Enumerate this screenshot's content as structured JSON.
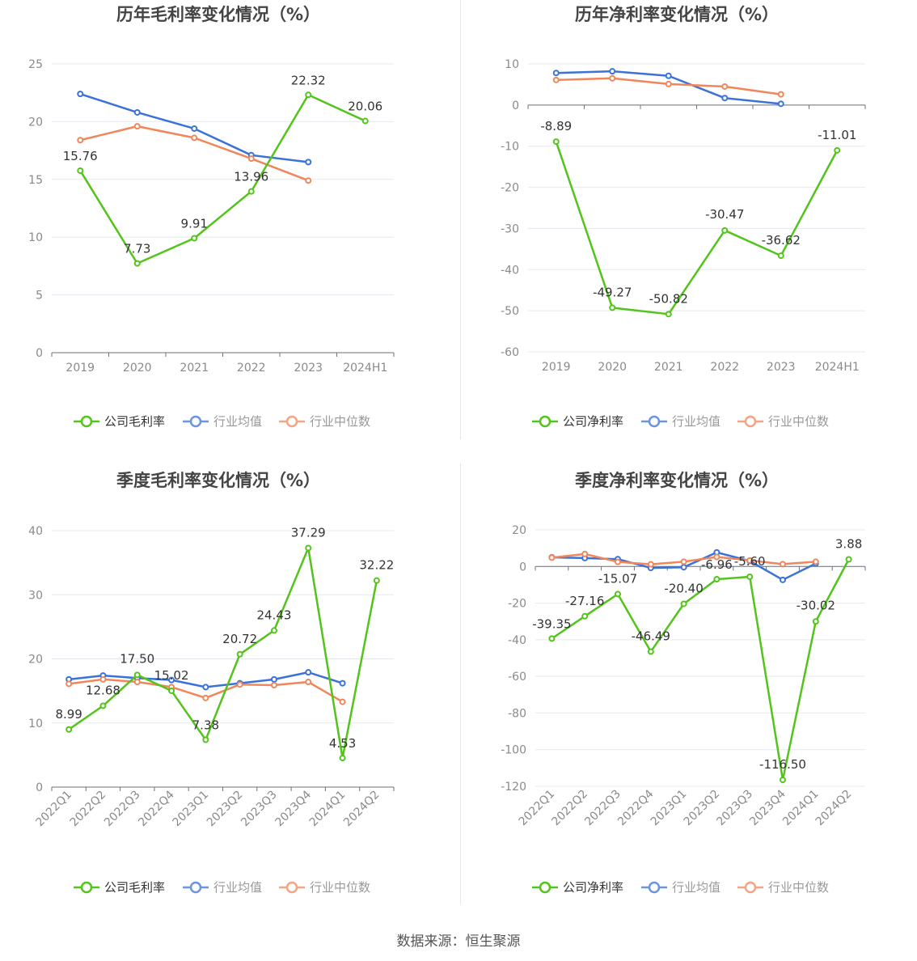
{
  "colors": {
    "company": "#52c41a",
    "industry_avg": "#3a72d8",
    "industry_median": "#f0865a",
    "grid": "#e6e8f0",
    "axis": "#6e7079",
    "label": "#333333",
    "tick": "#8a8a8a"
  },
  "source_text": "数据来源：恒生聚源",
  "chart_data": [
    {
      "type": "line",
      "title": "历年毛利率变化情况（%）",
      "categories": [
        "2019",
        "2020",
        "2021",
        "2022",
        "2023",
        "2024H1"
      ],
      "ylim": [
        0,
        25
      ],
      "yticks": [
        0,
        5,
        10,
        15,
        20,
        25
      ],
      "legend_position": "bottom",
      "grid": true,
      "series": [
        {
          "name": "公司毛利率",
          "key": "company",
          "values": [
            15.76,
            7.73,
            9.91,
            13.96,
            22.32,
            20.06
          ],
          "labels": [
            "15.76",
            "7.73",
            "9.91",
            "13.96",
            "22.32",
            "20.06"
          ]
        },
        {
          "name": "行业均值",
          "key": "industry_avg",
          "values": [
            22.4,
            20.8,
            19.4,
            17.1,
            16.5,
            null
          ]
        },
        {
          "name": "行业中位数",
          "key": "industry_median",
          "values": [
            18.4,
            19.6,
            18.6,
            16.8,
            14.9,
            null
          ]
        }
      ]
    },
    {
      "type": "line",
      "title": "历年净利率变化情况（%）",
      "categories": [
        "2019",
        "2020",
        "2021",
        "2022",
        "2023",
        "2024H1"
      ],
      "ylim": [
        -60,
        10
      ],
      "yticks": [
        -60,
        -50,
        -40,
        -30,
        -20,
        -10,
        0,
        10
      ],
      "legend_position": "bottom",
      "grid": true,
      "series": [
        {
          "name": "公司净利率",
          "key": "company",
          "values": [
            -8.89,
            -49.27,
            -50.82,
            -30.47,
            -36.62,
            -11.01
          ],
          "labels": [
            "-8.89",
            "-49.27",
            "-50.82",
            "-30.47",
            "-36.62",
            "-11.01"
          ]
        },
        {
          "name": "行业均值",
          "key": "industry_avg",
          "values": [
            7.8,
            8.2,
            7.1,
            1.7,
            0.3,
            null
          ]
        },
        {
          "name": "行业中位数",
          "key": "industry_median",
          "values": [
            6.1,
            6.5,
            5.1,
            4.5,
            2.6,
            null
          ]
        }
      ]
    },
    {
      "type": "line",
      "title": "季度毛利率变化情况（%）",
      "categories": [
        "2022Q1",
        "2022Q2",
        "2022Q3",
        "2022Q4",
        "2023Q1",
        "2023Q2",
        "2023Q3",
        "2023Q4",
        "2024Q1",
        "2024Q2"
      ],
      "ylim": [
        0,
        40
      ],
      "yticks": [
        0,
        10,
        20,
        30,
        40
      ],
      "legend_position": "bottom",
      "grid": true,
      "series": [
        {
          "name": "公司毛利率",
          "key": "company",
          "values": [
            8.99,
            12.68,
            17.5,
            15.02,
            7.38,
            20.72,
            24.43,
            37.29,
            4.53,
            32.22
          ],
          "labels": [
            "8.99",
            "12.68",
            "17.50",
            "15.02",
            "7.38",
            "20.72",
            "24.43",
            "37.29",
            "4.53",
            "32.22"
          ]
        },
        {
          "name": "行业均值",
          "key": "industry_avg",
          "values": [
            16.8,
            17.4,
            17.0,
            16.7,
            15.6,
            16.2,
            16.8,
            17.9,
            16.2,
            null
          ]
        },
        {
          "name": "行业中位数",
          "key": "industry_median",
          "values": [
            16.1,
            16.8,
            16.4,
            15.6,
            13.9,
            16.0,
            15.9,
            16.4,
            13.3,
            null
          ]
        }
      ]
    },
    {
      "type": "line",
      "title": "季度净利率变化情况（%）",
      "categories": [
        "2022Q1",
        "2022Q2",
        "2022Q3",
        "2022Q4",
        "2023Q1",
        "2023Q2",
        "2023Q3",
        "2023Q4",
        "2024Q1",
        "2024Q2"
      ],
      "ylim": [
        -120,
        20
      ],
      "yticks": [
        -120,
        -100,
        -80,
        -60,
        -40,
        -20,
        0,
        20
      ],
      "legend_position": "bottom",
      "grid": true,
      "series": [
        {
          "name": "公司净利率",
          "key": "company",
          "values": [
            -39.35,
            -27.16,
            -15.07,
            -46.49,
            -20.4,
            -6.96,
            -5.6,
            -116.5,
            -30.02,
            3.88
          ],
          "labels": [
            "-39.35",
            "-27.16",
            "-15.07",
            "-46.49",
            "-20.40",
            "-6.96",
            "-5.60",
            "-116.50",
            "-30.02",
            "3.88"
          ]
        },
        {
          "name": "行业均值",
          "key": "industry_avg",
          "values": [
            5.0,
            4.6,
            4.0,
            -0.8,
            -0.4,
            7.7,
            3.0,
            -7.3,
            1.6,
            null
          ]
        },
        {
          "name": "行业中位数",
          "key": "industry_median",
          "values": [
            4.8,
            6.8,
            2.5,
            1.2,
            2.6,
            5.2,
            3.3,
            1.3,
            2.6,
            null
          ]
        }
      ]
    }
  ]
}
